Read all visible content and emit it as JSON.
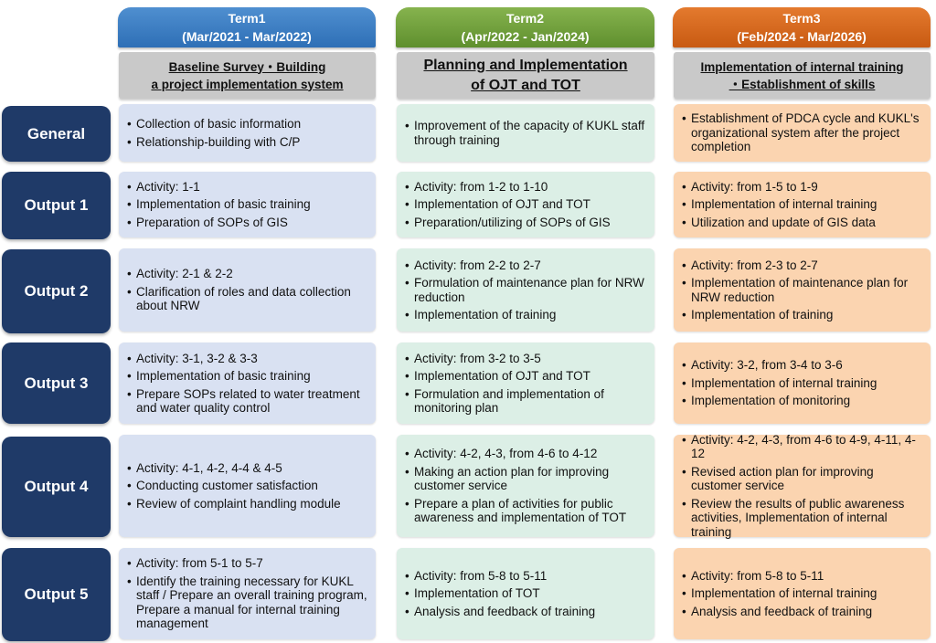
{
  "terms": [
    {
      "name": "Term1",
      "period": "(Mar/2021 - Mar/2022)",
      "theme_line1": "Baseline Survey・Building",
      "theme_line2": "a project implementation system"
    },
    {
      "name": "Term2",
      "period": "(Apr/2022 - Jan/2024)",
      "theme_line1": "Planning and Implementation",
      "theme_line2": "of OJT and TOT"
    },
    {
      "name": "Term3",
      "period": "(Feb/2024 - Mar/2026)",
      "theme_line1": "Implementation of internal training",
      "theme_line2": "・Establishment of skills"
    }
  ],
  "rows": [
    {
      "label": "General",
      "cells": [
        [
          "Collection of basic information",
          "Relationship-building with C/P"
        ],
        [
          "Improvement of the capacity of KUKL staff through training"
        ],
        [
          "Establishment of PDCA cycle and KUKL's organizational system after the project completion"
        ]
      ]
    },
    {
      "label": "Output 1",
      "cells": [
        [
          "Activity: 1-1",
          "Implementation of basic training",
          "Preparation of SOPs of GIS"
        ],
        [
          "Activity: from 1-2 to 1-10",
          "Implementation of OJT and TOT",
          "Preparation/utilizing of SOPs of GIS"
        ],
        [
          "Activity: from 1-5 to 1-9",
          "Implementation of internal training",
          "Utilization and update of GIS data"
        ]
      ]
    },
    {
      "label": "Output 2",
      "cells": [
        [
          "Activity: 2-1 & 2-2",
          "Clarification of roles and data collection about NRW"
        ],
        [
          "Activity: from 2-2 to 2-7",
          "Formulation of maintenance plan for NRW reduction",
          "Implementation of training"
        ],
        [
          "Activity: from 2-3 to 2-7",
          "Implementation of maintenance plan for NRW reduction",
          "Implementation of training"
        ]
      ]
    },
    {
      "label": "Output 3",
      "cells": [
        [
          "Activity: 3-1, 3-2 & 3-3",
          "Implementation of basic training",
          "Prepare SOPs related to water treatment and water quality control"
        ],
        [
          "Activity: from 3-2 to 3-5",
          "Implementation of OJT and TOT",
          "Formulation and implementation of monitoring plan"
        ],
        [
          "Activity: 3-2, from 3-4 to 3-6",
          "Implementation of internal training",
          "Implementation of monitoring"
        ]
      ]
    },
    {
      "label": "Output 4",
      "cells": [
        [
          "Activity: 4-1, 4-2, 4-4 & 4-5",
          "Conducting customer satisfaction",
          "Review of complaint handling module"
        ],
        [
          "Activity: 4-2, 4-3, from 4-6 to 4-12",
          "Making an action plan for improving customer service",
          "Prepare a plan of activities for public awareness and implementation of TOT"
        ],
        [
          "Activity: 4-2, 4-3, from 4-6 to 4-9, 4-11, 4-12",
          "Revised action plan for improving customer service",
          "Review the results of public awareness activities, Implementation of internal training"
        ]
      ]
    },
    {
      "label": "Output 5",
      "cells": [
        [
          "Activity: from 5-1 to 5-7",
          "Identify the training necessary for KUKL staff / Prepare an overall training program, Prepare a manual for internal training management"
        ],
        [
          "Activity: from 5-8 to 5-11",
          "Implementation of TOT",
          "Analysis and feedback of training"
        ],
        [
          "Activity: from 5-8 to 5-11",
          "Implementation of internal training",
          "Analysis and feedback of training"
        ]
      ]
    }
  ]
}
